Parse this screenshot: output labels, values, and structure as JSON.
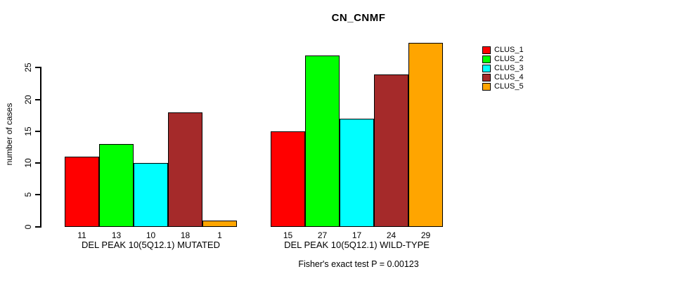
{
  "chart_data": {
    "type": "bar",
    "title": "CN_CNMF",
    "ylabel": "number of cases",
    "xlabel": "",
    "subtitle": "Fisher's exact test P = 0.00123",
    "ylim": [
      0,
      29
    ],
    "yticks": [
      0,
      5,
      10,
      15,
      20,
      25
    ],
    "grid": false,
    "legend_position": "right",
    "bar_value_labels_shown": true,
    "bar_border_color": "#000000",
    "categories": [
      "DEL PEAK 10(5Q12.1) MUTATED",
      "DEL PEAK 10(5Q12.1) WILD-TYPE"
    ],
    "series": [
      {
        "name": "CLUS_1",
        "color": "#FF0000",
        "values": [
          11,
          15
        ]
      },
      {
        "name": "CLUS_2",
        "color": "#00FF00",
        "values": [
          13,
          27
        ]
      },
      {
        "name": "CLUS_3",
        "color": "#00FFFF",
        "values": [
          10,
          17
        ]
      },
      {
        "name": "CLUS_4",
        "color": "#A52A2A",
        "values": [
          18,
          24
        ]
      },
      {
        "name": "CLUS_5",
        "color": "#FFA500",
        "values": [
          1,
          29
        ]
      }
    ],
    "legend": [
      {
        "label": "CLUS_1",
        "color": "#FF0000"
      },
      {
        "label": "CLUS_2",
        "color": "#00FF00"
      },
      {
        "label": "CLUS_3",
        "color": "#00FFFF"
      },
      {
        "label": "CLUS_4",
        "color": "#A52A2A"
      },
      {
        "label": "CLUS_5",
        "color": "#FFA500"
      }
    ]
  }
}
